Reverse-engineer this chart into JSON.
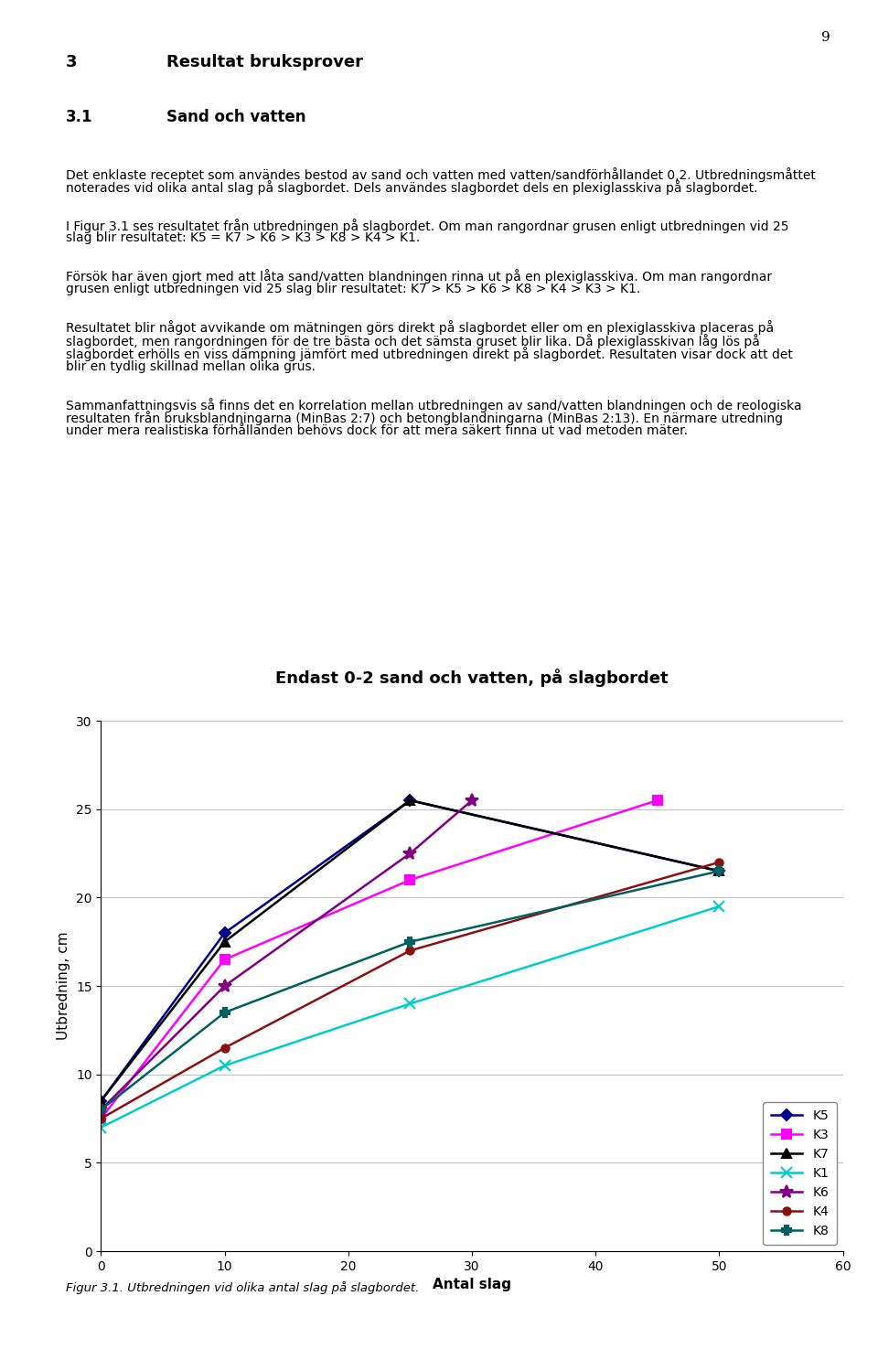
{
  "title": "Endast 0-2 sand och vatten, på slagbordet",
  "xlabel": "Antal slag",
  "ylabel": "Utbredning, cm",
  "xlim": [
    0,
    60
  ],
  "ylim": [
    0,
    30
  ],
  "xticks": [
    0,
    10,
    20,
    30,
    40,
    50,
    60
  ],
  "yticks": [
    0,
    5,
    10,
    15,
    20,
    25,
    30
  ],
  "series": [
    {
      "label": "K5",
      "x": [
        0,
        10,
        25,
        50
      ],
      "y": [
        8.5,
        18.0,
        25.5,
        21.5
      ],
      "color": "#00008B",
      "marker": "D",
      "markersize": 6,
      "linewidth": 1.8
    },
    {
      "label": "K3",
      "x": [
        0,
        10,
        25,
        45
      ],
      "y": [
        7.5,
        16.5,
        21.0,
        25.5
      ],
      "color": "#FF00FF",
      "marker": "s",
      "markersize": 7,
      "linewidth": 1.8
    },
    {
      "label": "K7",
      "x": [
        0,
        10,
        25,
        50
      ],
      "y": [
        8.5,
        17.5,
        25.5,
        21.5
      ],
      "color": "#000000",
      "marker": "^",
      "markersize": 7,
      "linewidth": 1.8
    },
    {
      "label": "K1",
      "x": [
        0,
        10,
        25,
        50
      ],
      "y": [
        7.0,
        10.5,
        14.0,
        19.5
      ],
      "color": "#00CCCC",
      "marker": "x",
      "markersize": 8,
      "linewidth": 1.8
    },
    {
      "label": "K6",
      "x": [
        0,
        10,
        25,
        30
      ],
      "y": [
        8.0,
        15.0,
        22.5,
        25.5
      ],
      "color": "#800080",
      "marker": "*",
      "markersize": 10,
      "linewidth": 1.8
    },
    {
      "label": "K4",
      "x": [
        0,
        10,
        25,
        50
      ],
      "y": [
        7.5,
        11.5,
        17.0,
        22.0
      ],
      "color": "#8B1010",
      "marker": "o",
      "markersize": 6,
      "linewidth": 1.8
    },
    {
      "label": "K8",
      "x": [
        0,
        10,
        25,
        50
      ],
      "y": [
        8.0,
        13.5,
        17.5,
        21.5
      ],
      "color": "#006060",
      "marker": "P",
      "markersize": 7,
      "linewidth": 1.8
    }
  ],
  "legend_loc": "lower right",
  "background_color": "#ffffff",
  "grid_color": "#c0c0c0",
  "title_fontsize": 13,
  "label_fontsize": 11,
  "tick_fontsize": 10,
  "legend_fontsize": 10,
  "page_number": "9",
  "heading1_num": "3",
  "heading1_text": "Resultat bruksprover",
  "heading2_num": "3.1",
  "heading2_text": "Sand och vatten",
  "para1": "Det enklaste receptet som användes bestod av sand och vatten med vatten/sandförhållandet 0,2. Utbredningsmåttet noterades vid olika antal slag på slagbordet. Dels användes slagbordet dels en plexiglasskiva på slagbordet.",
  "para2": "I Figur 3.1 ses resultatet från utbredningen på slagbordet. Om man rangordnar grusen enligt utbredningen vid 25 slag blir resultatet: K5 = K7 > K6 > K3 > K8 > K4 > K1.",
  "para3": "Försök har även gjort med att låta sand/vatten blandningen rinna ut på en plexiglasskiva. Om man rangordnar grusen enligt utbredningen vid 25 slag blir resultatet: K7 > K5 > K6 > K8 > K4 > K3 > K1.",
  "para4": "Resultatet blir något avvikande om mätningen görs direkt på slagbordet eller om en plexiglasskiva placeras på slagbordet, men rangordningen för de tre bästa och det sämsta gruset blir lika. Då plexiglasskivan låg lös på slagbordet erhölls en viss dämpning jämfört med utbredningen direkt på slagbordet. Resultaten visar dock att det blir en tydlig skillnad mellan olika grus.",
  "para5": "Sammanfattningsvis så finns det en korrelation mellan utbredningen av sand/vatten blandningen och de reologiska resultaten från bruksblandningarna (MinBas 2:7) och betongblandningarna (MinBas 2:13). En närmare utredning under mera realistiska förhållanden behövs dock för att mera säkert finna ut vad metoden mäter.",
  "figure_caption": "Figur 3.1. Utbredningen vid olika antal slag på slagbordet."
}
